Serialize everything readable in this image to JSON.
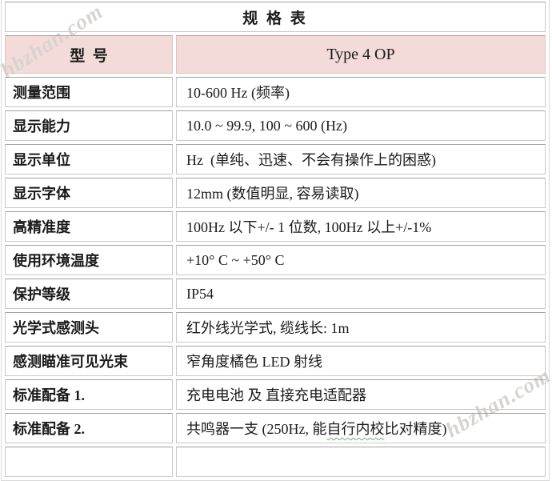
{
  "watermarks": {
    "top_left": "hbzhan.com",
    "bottom_right": "hbzhan.com",
    "color": "#d8d3d0"
  },
  "table": {
    "title": "规 格 表",
    "header": {
      "label": "型  号",
      "value": "Type 4 OP"
    },
    "rows": [
      {
        "label": "测量范围",
        "value": "10-600 Hz (频率)"
      },
      {
        "label": "显示能力",
        "value": "10.0 ~ 99.9, 100 ~ 600 (Hz)"
      },
      {
        "label": "显示单位",
        "value": "Hz  (单纯、迅速、不会有操作上的困惑)"
      },
      {
        "label": "显示字体",
        "value": "12mm (数值明显, 容易读取)"
      },
      {
        "label": "高精准度",
        "value": "100Hz 以下+/- 1 位数, 100Hz 以上+/-1%"
      },
      {
        "label": "使用环境温度",
        "value": "+10° C ~ +50° C"
      },
      {
        "label": "保护等级",
        "value": "IP54"
      },
      {
        "label": "光学式感测头",
        "value": "红外线光学式, 缆线长: 1m"
      },
      {
        "label": "感测瞄准可见光束",
        "value": "窄角度橘色 LED 射线"
      },
      {
        "label": "标准配备 1.",
        "value": "充电电池 及 直接充电适配器"
      },
      {
        "label": "标准配备 2.",
        "value": "共鸣器一支 (250Hz, 能自行内校比对精度)",
        "wavy_substring": "自行内校"
      }
    ],
    "colors": {
      "header_bg": "#f3dbd9",
      "cell_border": "#c9c9c9",
      "text": "#1b1b1b",
      "wavy_underline": "#6fae6f"
    }
  }
}
